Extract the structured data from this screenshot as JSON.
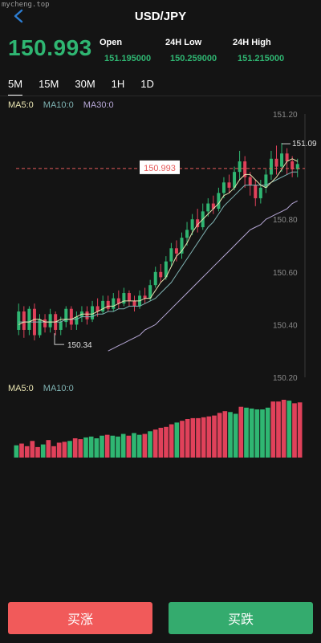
{
  "watermark": "mycheng.top",
  "header": {
    "title": "USD/JPY"
  },
  "quote": {
    "price": "150.993",
    "open_label": "Open",
    "open_value": "151.195000",
    "low_label": "24H Low",
    "low_value": "150.259000",
    "high_label": "24H High",
    "high_value": "151.215000"
  },
  "tabs": [
    {
      "label": "5M",
      "active": true
    },
    {
      "label": "15M",
      "active": false
    },
    {
      "label": "30M",
      "active": false
    },
    {
      "label": "1H",
      "active": false
    },
    {
      "label": "1D",
      "active": false
    }
  ],
  "ma_legend": {
    "ma5": "MA5:0",
    "ma10": "MA10:0",
    "ma30": "MA30:0"
  },
  "volume_legend": {
    "ma5": "MA5:0",
    "ma10": "MA10:0"
  },
  "buttons": {
    "rise": "买涨",
    "fall": "买跌"
  },
  "colors": {
    "up": "#2fb672",
    "down": "#e0415a",
    "price_line": "#e55a5a",
    "ma5": "#e8e3b0",
    "ma10": "#7fb3b3",
    "ma30": "#b6a7d6"
  },
  "chart_data": {
    "type": "candlestick",
    "y_ticks": [
      "151.20",
      "150.80",
      "150.60",
      "150.40",
      "150.20"
    ],
    "ylim": [
      150.2,
      151.2
    ],
    "current_price_label": "150.993",
    "current_price": 150.993,
    "max_label": "151.09",
    "max_value": 151.09,
    "min_label": "150.34",
    "min_value": 150.34,
    "candles": [
      [
        150.38,
        150.45,
        150.36,
        150.48
      ],
      [
        150.45,
        150.38,
        150.35,
        150.47
      ],
      [
        150.38,
        150.46,
        150.36,
        150.47
      ],
      [
        150.46,
        150.36,
        150.34,
        150.48
      ],
      [
        150.36,
        150.42,
        150.35,
        150.44
      ],
      [
        150.42,
        150.39,
        150.37,
        150.44
      ],
      [
        150.39,
        150.44,
        150.37,
        150.46
      ],
      [
        150.44,
        150.38,
        150.36,
        150.45
      ],
      [
        150.38,
        150.41,
        150.36,
        150.43
      ],
      [
        150.41,
        150.46,
        150.39,
        150.47
      ],
      [
        150.46,
        150.4,
        150.38,
        150.47
      ],
      [
        150.4,
        150.43,
        150.38,
        150.45
      ],
      [
        150.43,
        150.45,
        150.41,
        150.47
      ],
      [
        150.45,
        150.42,
        150.4,
        150.47
      ],
      [
        150.42,
        150.47,
        150.41,
        150.49
      ],
      [
        150.47,
        150.45,
        150.43,
        150.5
      ],
      [
        150.45,
        150.49,
        150.44,
        150.51
      ],
      [
        150.49,
        150.46,
        150.45,
        150.51
      ],
      [
        150.46,
        150.5,
        150.45,
        150.52
      ],
      [
        150.5,
        150.48,
        150.46,
        150.53
      ],
      [
        150.48,
        150.52,
        150.47,
        150.54
      ],
      [
        150.52,
        150.49,
        150.47,
        150.53
      ],
      [
        150.49,
        150.47,
        150.45,
        150.51
      ],
      [
        150.47,
        150.51,
        150.46,
        150.53
      ],
      [
        150.51,
        150.5,
        150.48,
        150.54
      ],
      [
        150.5,
        150.55,
        150.49,
        150.57
      ],
      [
        150.55,
        150.6,
        150.54,
        150.62
      ],
      [
        150.6,
        150.58,
        150.56,
        150.63
      ],
      [
        150.58,
        150.64,
        150.57,
        150.66
      ],
      [
        150.64,
        150.69,
        150.62,
        150.71
      ],
      [
        150.69,
        150.67,
        150.64,
        150.72
      ],
      [
        150.67,
        150.73,
        150.65,
        150.75
      ],
      [
        150.73,
        150.76,
        150.7,
        150.79
      ],
      [
        150.76,
        150.8,
        150.74,
        150.82
      ],
      [
        150.8,
        150.77,
        150.75,
        150.84
      ],
      [
        150.77,
        150.83,
        150.76,
        150.86
      ],
      [
        150.83,
        150.86,
        150.81,
        150.88
      ],
      [
        150.86,
        150.84,
        150.82,
        150.89
      ],
      [
        150.84,
        150.9,
        150.83,
        150.92
      ],
      [
        150.9,
        150.94,
        150.88,
        150.96
      ],
      [
        150.94,
        150.92,
        150.9,
        150.97
      ],
      [
        150.92,
        150.98,
        150.91,
        151.0
      ],
      [
        150.98,
        151.02,
        150.95,
        151.06
      ],
      [
        151.02,
        150.96,
        150.92,
        151.04
      ],
      [
        150.96,
        150.93,
        150.89,
        150.98
      ],
      [
        150.93,
        150.88,
        150.85,
        150.95
      ],
      [
        150.88,
        150.92,
        150.86,
        150.95
      ],
      [
        150.92,
        150.97,
        150.9,
        150.99
      ],
      [
        150.97,
        151.03,
        150.95,
        151.06
      ],
      [
        151.03,
        151.0,
        150.97,
        151.08
      ],
      [
        151.0,
        151.05,
        150.98,
        151.09
      ],
      [
        151.05,
        151.02,
        150.97,
        151.07
      ],
      [
        151.02,
        150.99,
        150.96,
        151.04
      ],
      [
        150.99,
        151.01,
        150.96,
        151.03
      ]
    ],
    "ma5": [
      150.4,
      150.41,
      150.41,
      150.42,
      150.42,
      150.41,
      150.41,
      150.41,
      150.42,
      150.42,
      150.42,
      150.43,
      150.44,
      150.44,
      150.44,
      150.45,
      150.46,
      150.47,
      150.47,
      150.48,
      150.49,
      150.49,
      150.49,
      150.49,
      150.5,
      150.5,
      150.53,
      150.56,
      150.58,
      150.62,
      150.66,
      150.68,
      150.71,
      150.75,
      150.78,
      150.8,
      150.82,
      150.84,
      150.86,
      150.89,
      150.9,
      150.92,
      150.95,
      150.97,
      150.97,
      150.95,
      150.93,
      150.92,
      150.94,
      150.96,
      150.99,
      151.02,
      151.03,
      151.02
    ],
    "ma10": [
      150.41,
      150.41,
      150.41,
      150.41,
      150.41,
      150.41,
      150.41,
      150.41,
      150.41,
      150.42,
      150.42,
      150.42,
      150.43,
      150.43,
      150.43,
      150.44,
      150.44,
      150.45,
      150.45,
      150.46,
      150.46,
      150.47,
      150.47,
      150.47,
      150.48,
      150.49,
      150.5,
      150.52,
      150.54,
      150.56,
      150.59,
      150.62,
      150.65,
      150.68,
      150.71,
      150.74,
      150.77,
      150.79,
      150.82,
      150.85,
      150.87,
      150.89,
      150.91,
      150.93,
      150.93,
      150.93,
      150.93,
      150.93,
      150.94,
      150.95,
      150.96,
      150.97,
      150.98,
      150.98
    ],
    "ma30_from_index": 17,
    "ma30": [
      150.3,
      150.31,
      150.32,
      150.33,
      150.34,
      150.35,
      150.36,
      150.38,
      150.39,
      150.4,
      150.42,
      150.44,
      150.46,
      150.48,
      150.5,
      150.52,
      150.54,
      150.56,
      150.58,
      150.6,
      150.62,
      150.64,
      150.66,
      150.68,
      150.7,
      150.72,
      150.74,
      150.76,
      150.77,
      150.78,
      150.8,
      150.81,
      150.82,
      150.83,
      150.84,
      150.86,
      150.87
    ],
    "volumes": [
      14,
      16,
      13,
      19,
      12,
      15,
      20,
      13,
      17,
      18,
      19,
      22,
      21,
      23,
      24,
      22,
      25,
      26,
      25,
      24,
      27,
      25,
      28,
      26,
      27,
      30,
      32,
      34,
      35,
      38,
      40,
      42,
      44,
      45,
      45,
      46,
      47,
      48,
      51,
      53,
      52,
      50,
      58,
      57,
      56,
      55,
      55,
      57,
      64,
      64,
      66,
      65,
      62,
      63
    ],
    "volume_colors": [
      "up",
      "down",
      "down",
      "down",
      "down",
      "up",
      "down",
      "down",
      "down",
      "down",
      "up",
      "down",
      "down",
      "up",
      "up",
      "up",
      "up",
      "down",
      "up",
      "up",
      "up",
      "down",
      "up",
      "up",
      "down",
      "up",
      "down",
      "down",
      "down",
      "down",
      "up",
      "down",
      "down",
      "down",
      "down",
      "down",
      "down",
      "down",
      "down",
      "down",
      "up",
      "up",
      "down",
      "up",
      "up",
      "up",
      "up",
      "up",
      "down",
      "down",
      "down",
      "up",
      "down",
      "down"
    ]
  }
}
